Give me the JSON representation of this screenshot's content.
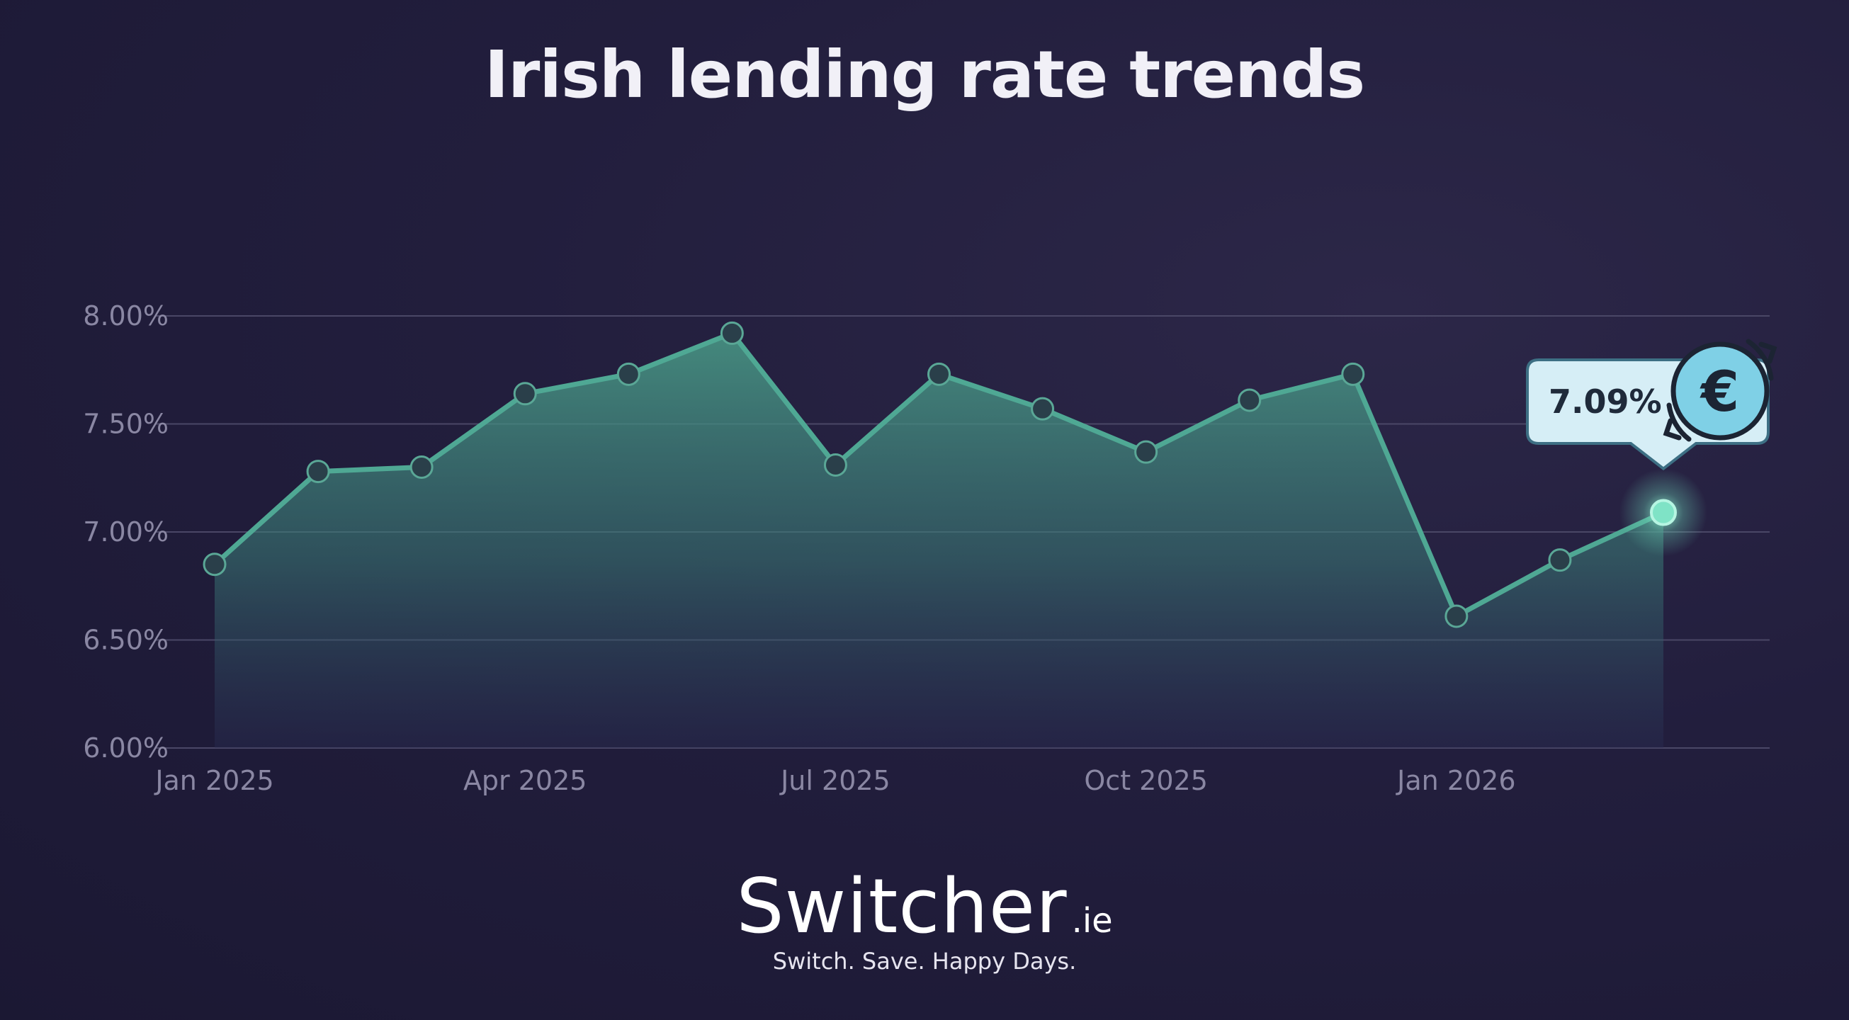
{
  "chart_data": {
    "type": "area",
    "title": "Irish lending rate trends",
    "xlabel": "",
    "ylabel": "",
    "x": [
      "Jan 2025",
      "Feb 2025",
      "Mar 2025",
      "Apr 2025",
      "May 2025",
      "Jun 2025",
      "Jul 2025",
      "Aug 2025",
      "Sep 2025",
      "Oct 2025",
      "Nov 2025",
      "Dec 2025",
      "Jan 2026",
      "Feb 2026",
      "Mar 2026"
    ],
    "series": [
      {
        "values": [
          6.85,
          7.28,
          7.3,
          7.64,
          7.73,
          7.92,
          7.31,
          7.73,
          7.57,
          7.37,
          7.61,
          7.73,
          6.61,
          6.87,
          7.09
        ]
      }
    ],
    "ylim": [
      6.0,
      8.0
    ],
    "yticks": [
      "6.00%",
      "6.50%",
      "7.00%",
      "7.50%",
      "8.00%"
    ],
    "ytick_values": [
      6.0,
      6.5,
      7.0,
      7.5,
      8.0
    ],
    "xticks": [
      "Jan 2025",
      "Apr 2025",
      "Jul 2025",
      "Oct 2025",
      "Jan 2026"
    ],
    "xtick_index": [
      0,
      3,
      6,
      9,
      12
    ],
    "grid": true,
    "highlight": {
      "label": "7.09%",
      "index": 14,
      "icon": "euro-icon"
    },
    "colors": {
      "line": "#4fa894",
      "fill": "#3f9383",
      "marker": "#2a3f4a",
      "highlight": "#7fe3c6",
      "callout": "#d6eef6",
      "grid": "#4a4766"
    }
  },
  "brand": {
    "name": "Switcher",
    "tld": ".ie",
    "tagline": "Switch. Save. Happy Days."
  }
}
